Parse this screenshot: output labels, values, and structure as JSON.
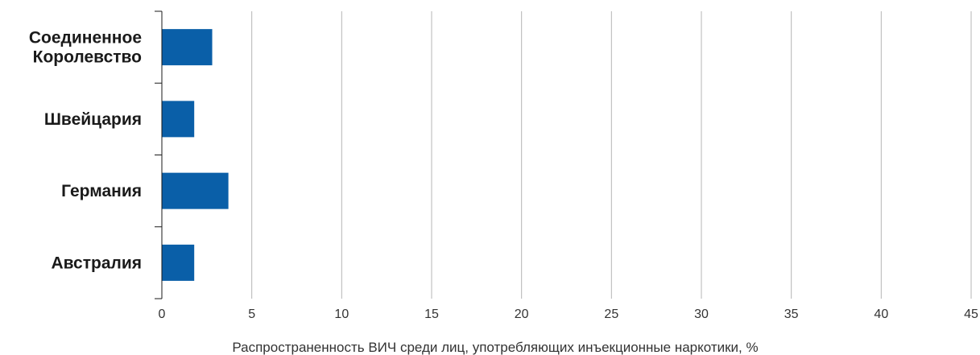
{
  "chart_data": {
    "type": "bar",
    "orientation": "horizontal",
    "categories": [
      "Соединенное Королевство",
      "Швейцария",
      "Германия",
      "Австралия"
    ],
    "category_lines": [
      [
        "Соединенное",
        "Королевство"
      ],
      [
        "Швейцария"
      ],
      [
        "Германия"
      ],
      [
        "Австралия"
      ]
    ],
    "values": [
      2.8,
      1.8,
      3.7,
      1.8
    ],
    "xlabel": "Распространенность ВИЧ среди лиц, употребляющих инъекционные наркотики, %",
    "xlim": [
      0,
      45
    ],
    "xticks": [
      0,
      5,
      10,
      15,
      20,
      25,
      30,
      35,
      40,
      45
    ],
    "xtick_labels": [
      "0",
      "5",
      "10",
      "15",
      "20",
      "25",
      "30",
      "35",
      "40",
      "45"
    ],
    "grid": "vertical",
    "bar_color": "#0a5fa8",
    "grid_color": "#b5b5b5"
  }
}
